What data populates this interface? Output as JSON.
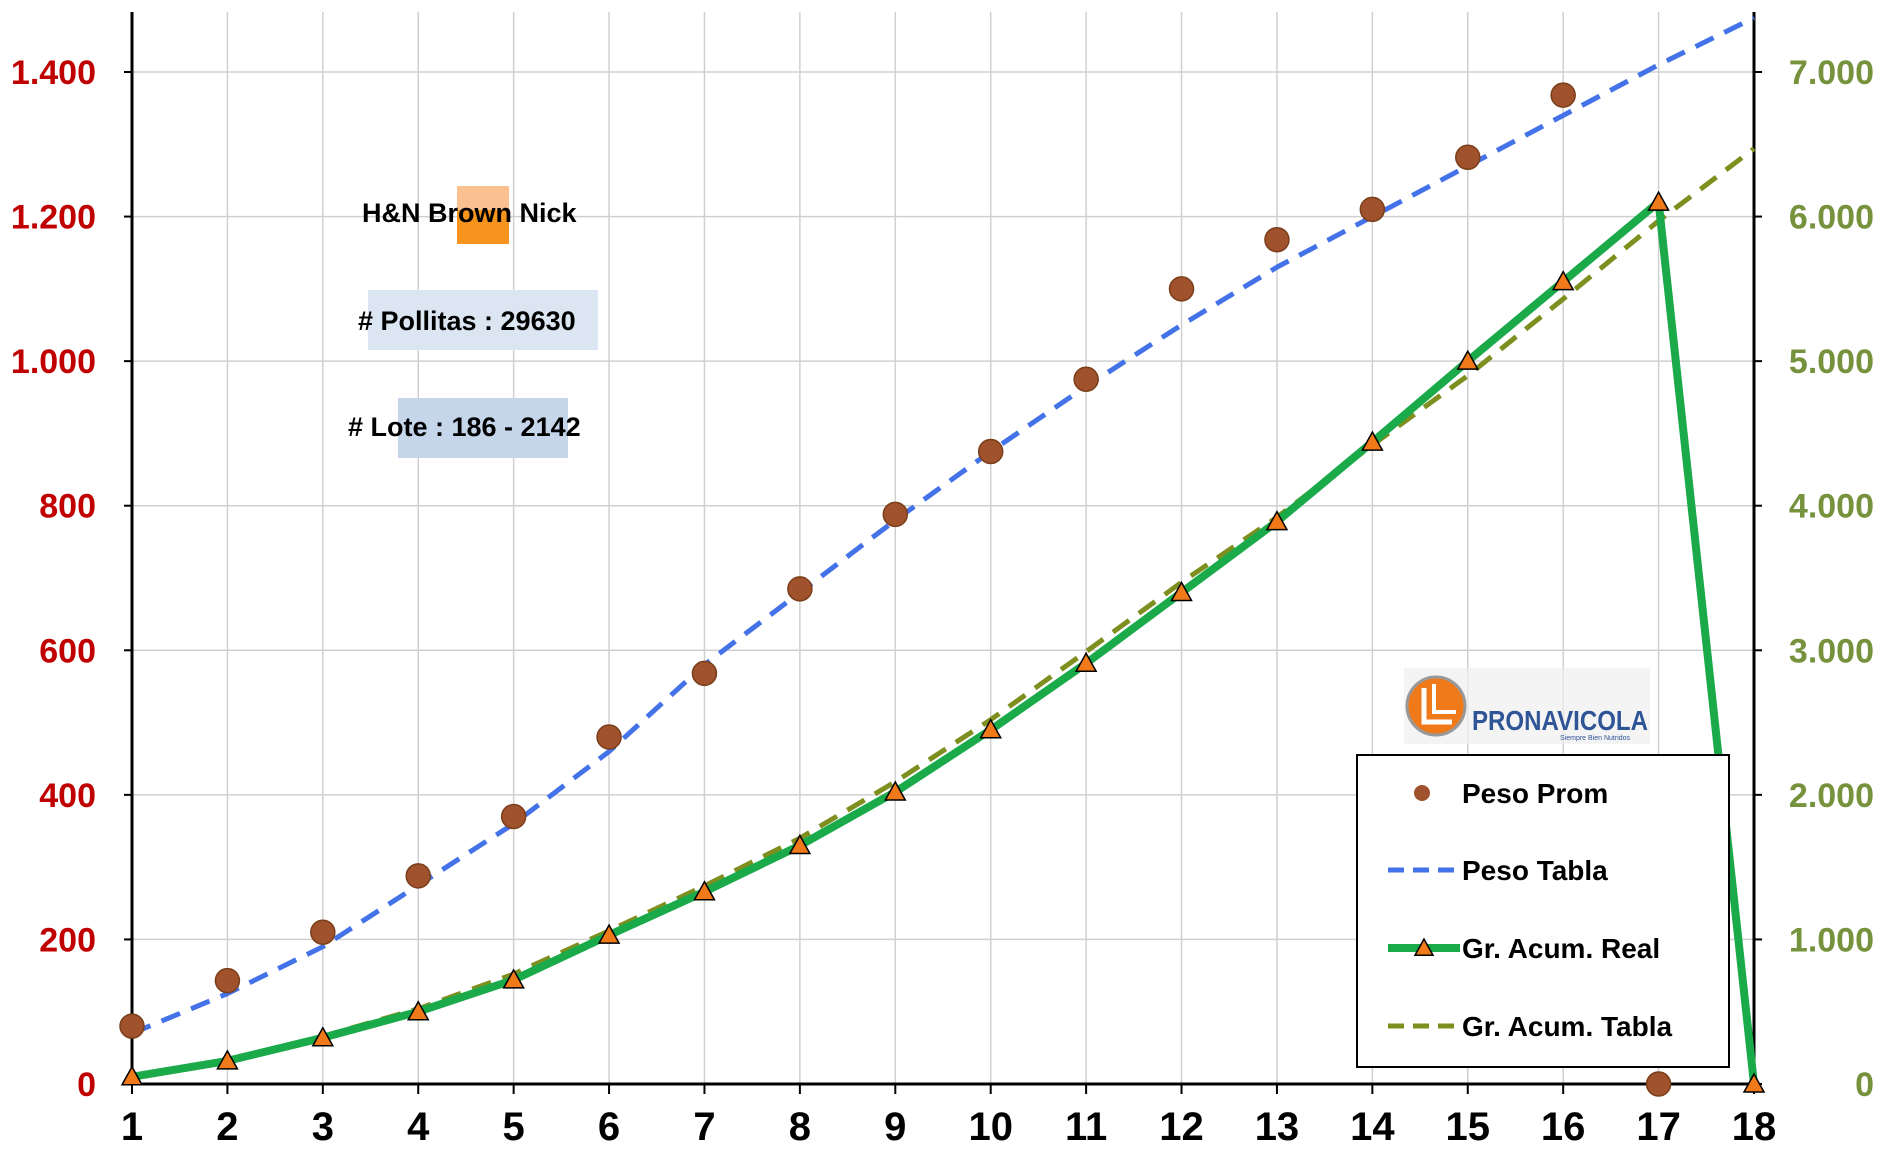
{
  "chart_data": {
    "type": "line",
    "x": [
      1,
      2,
      3,
      4,
      5,
      6,
      7,
      8,
      9,
      10,
      11,
      12,
      13,
      14,
      15,
      16,
      17,
      18
    ],
    "xlim": [
      1,
      18
    ],
    "ylim_left": [
      0,
      1400
    ],
    "ylim_right": [
      0,
      7000
    ],
    "left_ticks": [
      0,
      200,
      400,
      600,
      800,
      1000,
      1200,
      1400
    ],
    "left_tick_labels": [
      "0",
      "200",
      "400",
      "600",
      "800",
      "1.000",
      "1.200",
      "1.400"
    ],
    "right_ticks": [
      0,
      1000,
      2000,
      3000,
      4000,
      5000,
      6000,
      7000
    ],
    "right_tick_labels": [
      "0",
      "1.000",
      "2.000",
      "3.000",
      "4.000",
      "5.000",
      "6.000",
      "7.000"
    ],
    "x_tick_labels": [
      "1",
      "2",
      "3",
      "4",
      "5",
      "6",
      "7",
      "8",
      "9",
      "10",
      "11",
      "12",
      "13",
      "14",
      "15",
      "16",
      "17",
      "18"
    ],
    "grid": true,
    "legend_position": "bottom-right",
    "series": [
      {
        "name": "Peso Prom",
        "axis": "left",
        "style": "markers-circle",
        "color": "#A0522D",
        "values": [
          80,
          143,
          210,
          288,
          370,
          480,
          568,
          685,
          788,
          875,
          975,
          1100,
          1168,
          1210,
          1282,
          1368,
          0,
          null
        ]
      },
      {
        "name": "Peso Tabla",
        "axis": "left",
        "style": "dashed",
        "color": "#4472E8",
        "values": [
          70,
          125,
          190,
          275,
          360,
          460,
          580,
          680,
          780,
          875,
          965,
          1050,
          1130,
          1200,
          1270,
          1340,
          1410,
          1475
        ]
      },
      {
        "name": "Gr. Acum. Real",
        "axis": "right",
        "style": "solid-triangles",
        "color": "#1AAA4A",
        "marker_color": "#F07A1A",
        "values": [
          50,
          160,
          320,
          500,
          720,
          1030,
          1330,
          1650,
          2020,
          2450,
          2910,
          3400,
          3890,
          4440,
          5000,
          5550,
          6100,
          0
        ]
      },
      {
        "name": "Gr. Acum. Tabla",
        "axis": "right",
        "style": "dashed",
        "color": "#7F8F1F",
        "values": [
          50,
          165,
          330,
          520,
          760,
          1060,
          1370,
          1700,
          2090,
          2520,
          2990,
          3470,
          3920,
          4420,
          4900,
          5430,
          5970,
          6470
        ]
      }
    ]
  },
  "info": {
    "breed": "H&N Brown Nick",
    "pollitas": "# Pollitas : 29630",
    "lote": "# Lote : 186 - 2142"
  },
  "logo": {
    "text": "PRONAVICOLA",
    "tagline": "Siempre Bien Nutridos"
  },
  "colors": {
    "left_axis": "#C00000",
    "right_axis": "#76923C",
    "grid": "#D0D0D0",
    "breed_swatch": "#F7941D",
    "pollitas_box": "#DCE6F2",
    "lote_box": "#C5D5EA"
  }
}
